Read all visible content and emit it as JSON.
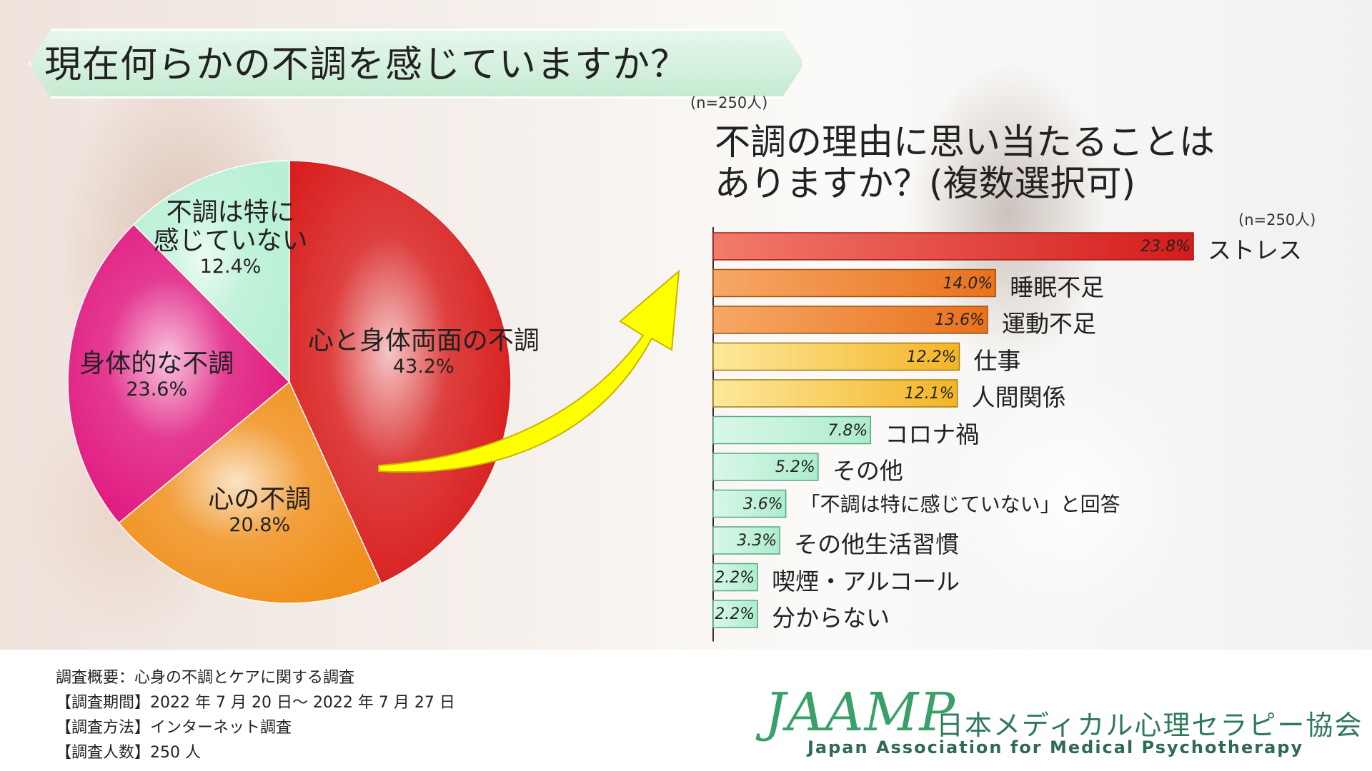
{
  "title": "現在何らかの不調を感じていますか？",
  "pie_sample": "(n=250人)",
  "question2": [
    "不調の理由に思い当たることは",
    "ありますか？(複数選択可)"
  ],
  "bar_sample": "(n=250人)",
  "colors": {
    "pie": [
      "#d81e1e",
      "#f0901c",
      "#e0197f",
      "#b8f0d4"
    ],
    "bars_red": "#e32b2b",
    "bars_orange": "#ee7a1f",
    "bars_yellow": "#f7c234",
    "bars_mint": "#bff1d7",
    "arrow": "#ffff00",
    "brand": "#3aa06a"
  },
  "chart_data": [
    {
      "type": "pie",
      "title": "現在何らかの不調を感じていますか？",
      "labels": [
        "心と身体両面の不調",
        "心の不調",
        "身体的な不調",
        "不調は特に感じていない"
      ],
      "display_labels": [
        "心と身体両面の不調",
        "心の不調",
        "身体的な不調",
        "不調は特に\n感じていない"
      ],
      "values": [
        43.2,
        20.8,
        23.6,
        12.4
      ],
      "value_labels": [
        "43.2%",
        "20.8%",
        "23.6%",
        "12.4%"
      ],
      "unit": "%",
      "start": "top, clockwise"
    },
    {
      "type": "bar",
      "orientation": "horizontal",
      "title": "不調の理由に思い当たることはありますか？(複数選択可)",
      "categories": [
        "ストレス",
        "睡眠不足",
        "運動不足",
        "仕事",
        "人間関係",
        "コロナ禍",
        "その他",
        "「不調は特に感じていない」と回答",
        "その他生活習慣",
        "喫煙・アルコール",
        "分からない"
      ],
      "values": [
        23.8,
        14.0,
        13.6,
        12.2,
        12.1,
        7.8,
        5.2,
        3.6,
        3.3,
        2.2,
        2.2
      ],
      "value_labels": [
        "23.8%",
        "14.0%",
        "13.6%",
        "12.2%",
        "12.1%",
        "7.8%",
        "5.2%",
        "3.6%",
        "3.3%",
        "2.2%",
        "2.2%"
      ],
      "unit": "%",
      "color_groups": [
        "red",
        "orange",
        "orange",
        "yellow",
        "yellow",
        "mint",
        "mint",
        "mint",
        "mint",
        "mint",
        "mint"
      ]
    }
  ],
  "footer": {
    "lines": [
      "調査概要：心身の不調とケアに関する調査",
      "【調査期間】2022 年 7 月 20 日～ 2022 年 7 月 27 日",
      "【調査方法】インターネット調査",
      "【調査人数】250 人"
    ]
  },
  "logo": {
    "mark": "JAAMP",
    "name_jp": "日本メディカル心理セラピー協会",
    "name_en": "Japan Association for Medical Psychotherapy"
  }
}
